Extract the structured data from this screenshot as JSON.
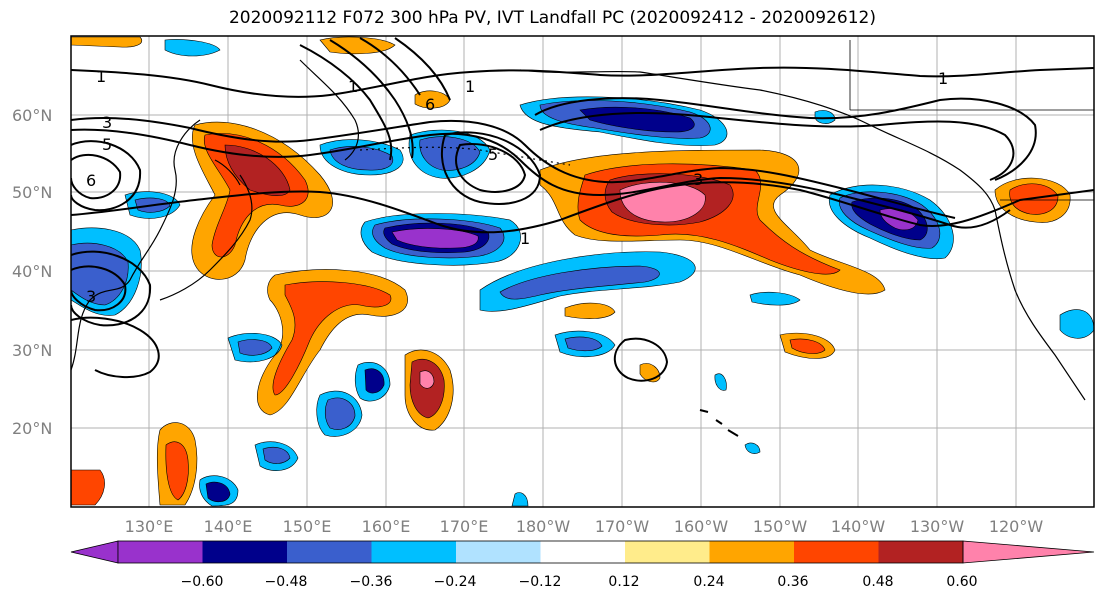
{
  "title": "2020092112 F072 300 hPa PV, IVT Landfall PC (2020092412 - 2020092612)",
  "map": {
    "lat_labels": [
      "60°N",
      "50°N",
      "40°N",
      "30°N",
      "20°N"
    ],
    "lon_labels": [
      "130°E",
      "140°E",
      "150°E",
      "160°E",
      "170°E",
      "180°W",
      "170°W",
      "160°W",
      "150°W",
      "140°W",
      "130°W",
      "120°W"
    ],
    "contour_labels": [
      "1",
      "3",
      "5",
      "6",
      "3",
      "1",
      "6",
      "5",
      "3",
      "1",
      "1",
      "1"
    ],
    "colors": {
      "land_outline": "#000000",
      "grid": "#b0b0b0",
      "contour": "#000000"
    }
  },
  "colorbar": {
    "tick_labels": [
      "−0.60",
      "−0.48",
      "−0.36",
      "−0.24",
      "−0.12",
      "0.12",
      "0.24",
      "0.36",
      "0.48",
      "0.60"
    ],
    "colors": [
      "#9932cc",
      "#00008b",
      "#3a5fcd",
      "#00bfff",
      "#b0e2ff",
      "#ffffff",
      "#ffec8b",
      "#ffa500",
      "#ff4500",
      "#b22222",
      "#ff82ab"
    ]
  }
}
